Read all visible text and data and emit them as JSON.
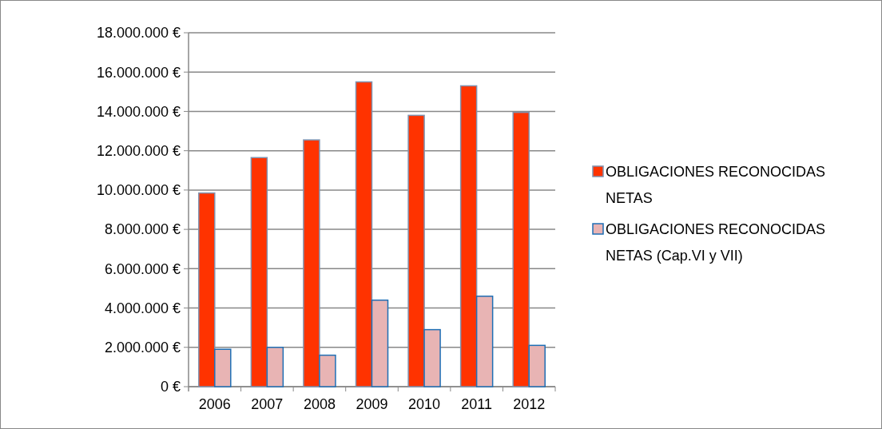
{
  "chart_data": {
    "type": "bar",
    "categories": [
      "2006",
      "2007",
      "2008",
      "2009",
      "2010",
      "2011",
      "2012"
    ],
    "series": [
      {
        "name": "OBLIGACIONES RECONOCIDAS NETAS",
        "color": "#ff3300",
        "values": [
          9850000,
          11650000,
          12550000,
          15500000,
          13800000,
          15300000,
          13950000
        ]
      },
      {
        "name": "OBLIGACIONES RECONOCIDAS NETAS (Cap.VI y VII)",
        "color": "#e8b4b4",
        "values": [
          1900000,
          2000000,
          1600000,
          4400000,
          2900000,
          4600000,
          2100000
        ]
      }
    ],
    "ylim": [
      0,
      18000000
    ],
    "yticks": [
      {
        "value": 0,
        "label": "0 €"
      },
      {
        "value": 2000000,
        "label": "2.000.000 €"
      },
      {
        "value": 4000000,
        "label": "4.000.000 €"
      },
      {
        "value": 6000000,
        "label": "6.000.000 €"
      },
      {
        "value": 8000000,
        "label": "8.000.000 €"
      },
      {
        "value": 10000000,
        "label": "10.000.000 €"
      },
      {
        "value": 12000000,
        "label": "12.000.000 €"
      },
      {
        "value": 14000000,
        "label": "14.000.000 €"
      },
      {
        "value": 16000000,
        "label": "16.000.000 €"
      },
      {
        "value": 18000000,
        "label": "18.000.000 €"
      }
    ],
    "grid": "y",
    "legend": "right"
  }
}
